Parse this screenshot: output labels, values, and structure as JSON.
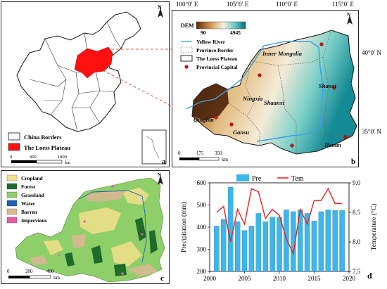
{
  "panel_a": {
    "letter": "a",
    "legend": [
      "China Borders",
      "The Loess Plateau"
    ],
    "scale_ticks": [
      "0",
      "900",
      "1800"
    ],
    "scale_unit": "km",
    "north": "N"
  },
  "panel_b": {
    "letter": "b",
    "top_ticks": [
      "100°0′ E",
      "105°0′ E",
      "110°0′ E",
      "115°0′ E"
    ],
    "right_ticks": [
      "40°0′ N",
      "35°0′ N"
    ],
    "dem_title": "DEM",
    "dem_min": "90",
    "dem_max": "4945",
    "legend": [
      "Yellow River",
      "Province Border",
      "The Loess Plateau",
      "Provincial Capital"
    ],
    "provinces": [
      "Inner Mongolia",
      "Ningxia",
      "Shanxi",
      "Shaanxi",
      "Qinghai",
      "Gansu",
      "Henan"
    ],
    "scale_ticks": [
      "0",
      "175",
      "350"
    ],
    "scale_unit": "km",
    "north": "N"
  },
  "panel_c": {
    "letter": "c",
    "legend": [
      "Cropland",
      "Forest",
      "Grassland",
      "Water",
      "Barren",
      "Impervious"
    ],
    "colors": [
      "#f2e08a",
      "#1e6b2a",
      "#8fcf6a",
      "#1f5fb0",
      "#d9b892",
      "#e85aa8"
    ],
    "scale_ticks": [
      "0",
      "200",
      "400"
    ],
    "scale_unit": "km",
    "north": "N"
  },
  "panel_d": {
    "letter": "d"
  },
  "chart_data": {
    "type": "bar",
    "x": [
      2001,
      2002,
      2003,
      2004,
      2005,
      2006,
      2007,
      2008,
      2009,
      2010,
      2011,
      2012,
      2013,
      2014,
      2015,
      2016,
      2017,
      2018,
      2019
    ],
    "series": [
      {
        "name": "Pre",
        "type": "bar",
        "axis": "left",
        "color": "#3fb6e8",
        "values": [
          405,
          435,
          580,
          425,
          385,
          405,
          462,
          425,
          445,
          445,
          478,
          470,
          478,
          462,
          428,
          470,
          478,
          475,
          475
        ]
      },
      {
        "name": "Tem",
        "type": "line",
        "axis": "right",
        "color": "#e8221b",
        "values": [
          8.5,
          8.6,
          8.0,
          8.55,
          8.3,
          8.9,
          8.85,
          8.4,
          8.55,
          8.45,
          8.05,
          7.8,
          8.55,
          8.3,
          8.7,
          8.7,
          8.9,
          8.65,
          8.65
        ]
      }
    ],
    "xlabel": "",
    "ylabel": "Precipitation (mm)",
    "y2label": "Temperature (°C)",
    "xlim": [
      2000,
      2020
    ],
    "ylim": [
      200,
      600
    ],
    "y2lim": [
      7.5,
      9.0
    ],
    "xticks": [
      2000,
      2005,
      2010,
      2015,
      2020
    ],
    "yticks": [
      200,
      300,
      400,
      500,
      600
    ],
    "y2ticks": [
      7.5,
      8.0,
      8.5,
      9.0
    ],
    "legend_position": "top"
  }
}
